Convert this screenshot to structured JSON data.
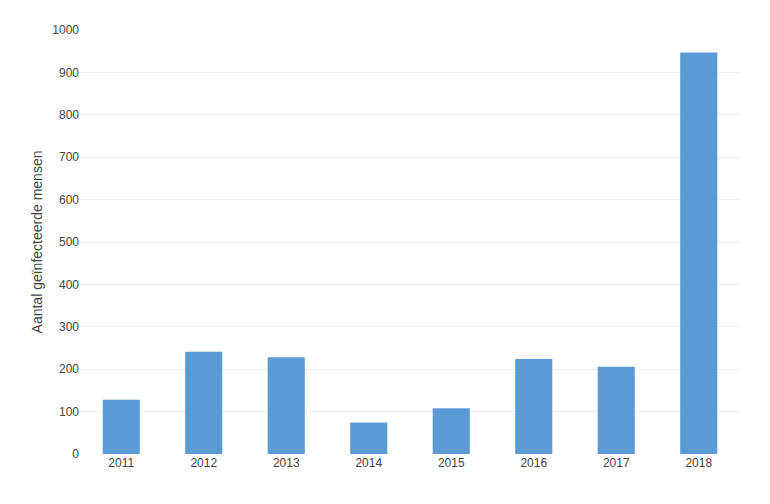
{
  "chart_data": {
    "type": "bar",
    "ylabel": "Aantal geïnfecteerde mensen",
    "categories": [
      "2011",
      "2012",
      "2013",
      "2014",
      "2015",
      "2016",
      "2017",
      "2018"
    ],
    "values": [
      128,
      241,
      228,
      74,
      108,
      224,
      206,
      947
    ],
    "color": "#5b9bd5",
    "ylim": [
      0,
      1000
    ],
    "yticks": [
      0,
      100,
      200,
      300,
      400,
      500,
      600,
      700,
      800,
      900,
      1000
    ],
    "grid": true
  }
}
